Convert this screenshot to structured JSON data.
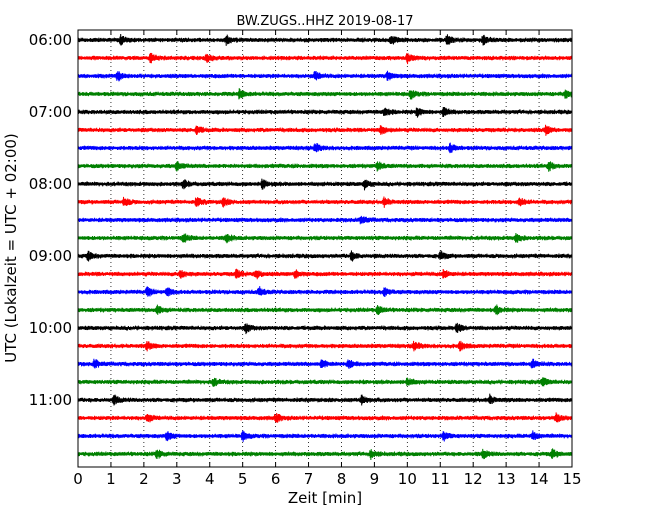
{
  "chart_data": {
    "type": "line",
    "title": "BW.ZUGS..HHZ 2019-08-17",
    "xlabel": "Zeit  [min]",
    "ylabel": "UTC (Lokalzeit = UTC + 02:00)",
    "xlim": [
      0,
      15
    ],
    "xticks": [
      0,
      1,
      2,
      3,
      4,
      5,
      6,
      7,
      8,
      9,
      10,
      11,
      12,
      13,
      14,
      15
    ],
    "ytick_labels": [
      "06:00",
      "07:00",
      "08:00",
      "09:00",
      "10:00",
      "11:00"
    ],
    "grid": "vertical dotted",
    "colors": [
      "#000000",
      "#ff0000",
      "#0000ff",
      "#008000"
    ],
    "traces": [
      {
        "start": "06:00",
        "color": "#000000",
        "events": [
          1.3,
          4.5,
          9.5,
          11.2,
          12.3
        ]
      },
      {
        "start": "06:15",
        "color": "#ff0000",
        "events": [
          2.2,
          3.9,
          10.0
        ]
      },
      {
        "start": "06:30",
        "color": "#0000ff",
        "events": [
          1.2,
          7.2,
          9.4
        ]
      },
      {
        "start": "06:45",
        "color": "#008000",
        "events": [
          4.9,
          10.1,
          14.8
        ]
      },
      {
        "start": "07:00",
        "color": "#000000",
        "events": [
          9.3,
          10.3,
          11.1
        ]
      },
      {
        "start": "07:15",
        "color": "#ff0000",
        "events": [
          3.6,
          9.2,
          14.2
        ]
      },
      {
        "start": "07:30",
        "color": "#0000ff",
        "events": [
          7.2,
          11.3
        ]
      },
      {
        "start": "07:45",
        "color": "#008000",
        "events": [
          3.0,
          9.1,
          14.3
        ]
      },
      {
        "start": "08:00",
        "color": "#000000",
        "events": [
          3.2,
          5.6,
          8.7
        ]
      },
      {
        "start": "08:15",
        "color": "#ff0000",
        "events": [
          1.4,
          3.6,
          4.4,
          9.3,
          13.4
        ]
      },
      {
        "start": "08:30",
        "color": "#0000ff",
        "events": [
          8.6
        ]
      },
      {
        "start": "08:45",
        "color": "#008000",
        "events": [
          3.2,
          4.5,
          13.3
        ]
      },
      {
        "start": "09:00",
        "color": "#000000",
        "events": [
          0.3,
          8.3,
          11.0
        ]
      },
      {
        "start": "09:15",
        "color": "#ff0000",
        "events": [
          3.1,
          4.8,
          5.4,
          6.6,
          11.1
        ]
      },
      {
        "start": "09:30",
        "color": "#0000ff",
        "events": [
          2.1,
          2.7,
          5.5,
          9.3
        ]
      },
      {
        "start": "09:45",
        "color": "#008000",
        "events": [
          2.4,
          9.1,
          12.7
        ]
      },
      {
        "start": "10:00",
        "color": "#000000",
        "events": [
          5.1,
          11.5
        ]
      },
      {
        "start": "10:15",
        "color": "#ff0000",
        "events": [
          2.1,
          10.2,
          11.6
        ]
      },
      {
        "start": "10:30",
        "color": "#0000ff",
        "events": [
          0.5,
          7.4,
          8.2,
          13.8
        ]
      },
      {
        "start": "10:45",
        "color": "#008000",
        "events": [
          4.1,
          10.0,
          14.1
        ]
      },
      {
        "start": "11:00",
        "color": "#000000",
        "events": [
          1.1,
          8.6,
          12.5
        ]
      },
      {
        "start": "11:15",
        "color": "#ff0000",
        "events": [
          2.1,
          6.0,
          14.5
        ]
      },
      {
        "start": "11:30",
        "color": "#0000ff",
        "events": [
          2.7,
          5.0,
          11.1,
          13.8
        ]
      },
      {
        "start": "11:45",
        "color": "#008000",
        "events": [
          2.4,
          8.9,
          12.3,
          14.4
        ]
      }
    ]
  }
}
